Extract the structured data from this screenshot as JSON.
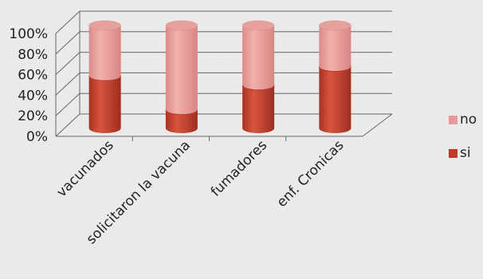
{
  "chart_data": {
    "type": "bar",
    "stacked": "percent",
    "style": "3d-cylinder",
    "categories": [
      "vacunados",
      "solicitaron la vacuna",
      "fumadores",
      "enf. Cronicas"
    ],
    "series": [
      {
        "name": "si",
        "values": [
          51,
          18,
          42,
          60
        ],
        "color": "#c0392b"
      },
      {
        "name": "no",
        "values": [
          49,
          82,
          58,
          40
        ],
        "color": "#e89a97"
      }
    ],
    "y_ticks": [
      "0%",
      "20%",
      "40%",
      "60%",
      "80%",
      "100%"
    ],
    "ylim": [
      0,
      100
    ],
    "grid": true,
    "legend_position": "right"
  }
}
